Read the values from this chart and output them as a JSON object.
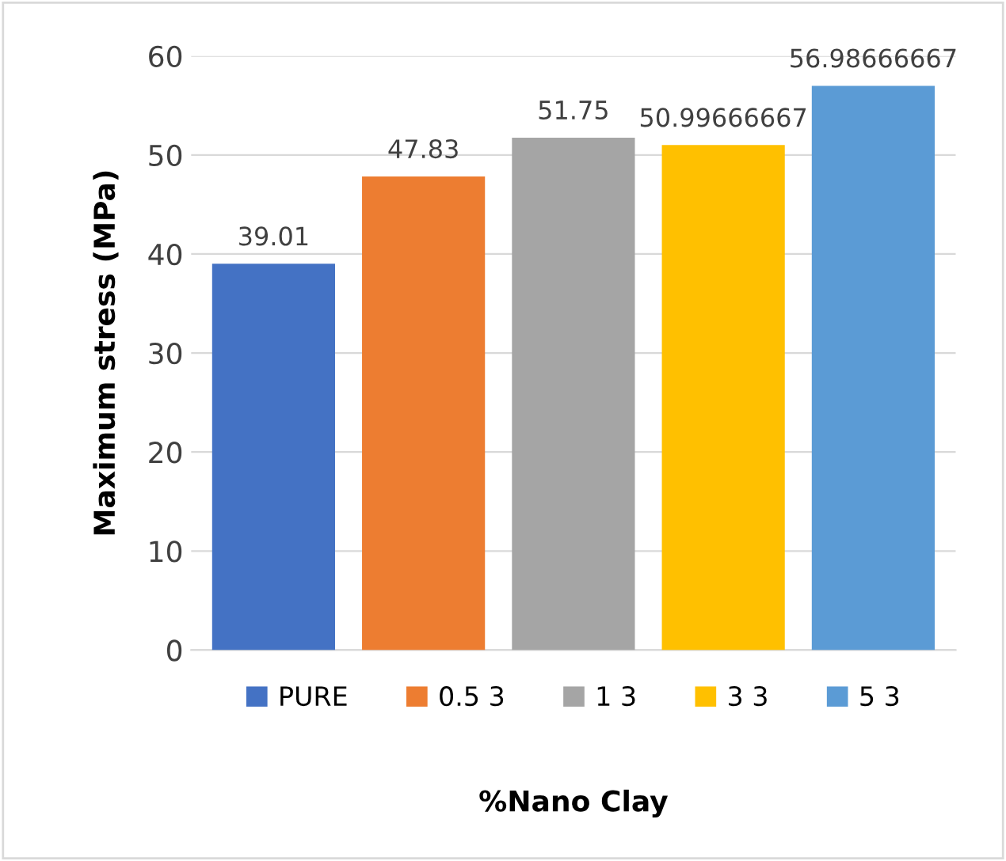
{
  "chart_data": {
    "type": "bar",
    "xlabel": "%Nano Clay",
    "ylabel": "Maximum stress (MPa)",
    "categories": [
      null,
      null,
      null,
      null,
      null
    ],
    "series": [
      {
        "name": "PURE",
        "color": "#4472c4",
        "values": [
          39.01,
          null,
          null,
          null,
          null
        ]
      },
      {
        "name": "0.5 3",
        "color": "#ed7d31",
        "values": [
          null,
          47.83,
          null,
          null,
          null
        ]
      },
      {
        "name": "1 3",
        "color": "#a5a5a5",
        "values": [
          null,
          null,
          51.75,
          null,
          null
        ]
      },
      {
        "name": "3 3",
        "color": "#ffc000",
        "values": [
          null,
          null,
          null,
          50.99666667,
          null
        ]
      },
      {
        "name": "5 3",
        "color": "#5b9bd5",
        "values": [
          null,
          null,
          null,
          null,
          56.98666667
        ]
      }
    ],
    "ylim": [
      0,
      60
    ],
    "yticks": [
      0,
      10,
      20,
      30,
      40,
      50,
      60
    ],
    "grid": "y",
    "legend": "bottom",
    "data_labels": true
  }
}
